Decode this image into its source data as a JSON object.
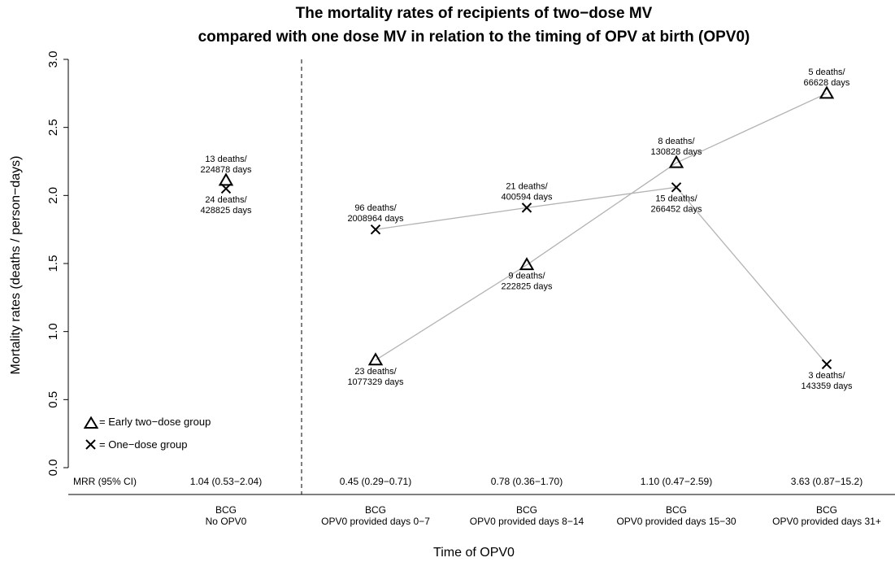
{
  "chart_data": {
    "type": "scatter",
    "title_line1": "The mortality rates of recipients of two−dose MV",
    "title_line2": "compared with one dose MV in relation to the timing of OPV at birth (OPV0)",
    "xlabel": "Time of OPV0",
    "ylabel": "Mortality rates (deaths / person−days)",
    "ylim": [
      0,
      3
    ],
    "yticks": [
      "0.0",
      "0.5",
      "1.0",
      "1.5",
      "2.0",
      "2.5",
      "3.0"
    ],
    "categories": [
      {
        "line1": "BCG",
        "line2": "No OPV0"
      },
      {
        "line1": "BCG",
        "line2": "OPV0 provided days 0−7"
      },
      {
        "line1": "BCG",
        "line2": "OPV0 provided days 8−14"
      },
      {
        "line1": "BCG",
        "line2": "OPV0 provided days 15−30"
      },
      {
        "line1": "BCG",
        "line2": "OPV0 provided days 31+"
      }
    ],
    "mrr_label": "MRR (95% CI)",
    "mrr": [
      "1.04 (0.53−2.04)",
      "0.45 (0.29−0.71)",
      "0.78 (0.36−1.70)",
      "1.10 (0.47−2.59)",
      "3.63 (0.87−15.2)"
    ],
    "series": [
      {
        "name": "Early two−dose group",
        "marker": "triangle",
        "values": [
          2.11,
          0.79,
          1.49,
          2.24,
          2.75
        ],
        "labels": [
          [
            "13 deaths/",
            "224878 days"
          ],
          [
            "23 deaths/",
            "1077329 days"
          ],
          [
            "9 deaths/",
            "222825 days"
          ],
          [
            "8 deaths/",
            "130828 days"
          ],
          [
            "5 deaths/",
            "66628 days"
          ]
        ]
      },
      {
        "name": "One−dose group",
        "marker": "cross",
        "values": [
          2.05,
          1.75,
          1.91,
          2.06,
          0.76
        ],
        "labels": [
          [
            "24 deaths/",
            "428825 days"
          ],
          [
            "96 deaths/",
            "2008964 days"
          ],
          [
            "21 deaths/",
            "400594 days"
          ],
          [
            "15 deaths/",
            "266452 days"
          ],
          [
            "3 deaths/",
            "143359 days"
          ]
        ]
      }
    ],
    "legend_placement": "bottom-left",
    "grid": false,
    "colors": {
      "line": "#b3b3b3",
      "marker": "#000000"
    }
  }
}
